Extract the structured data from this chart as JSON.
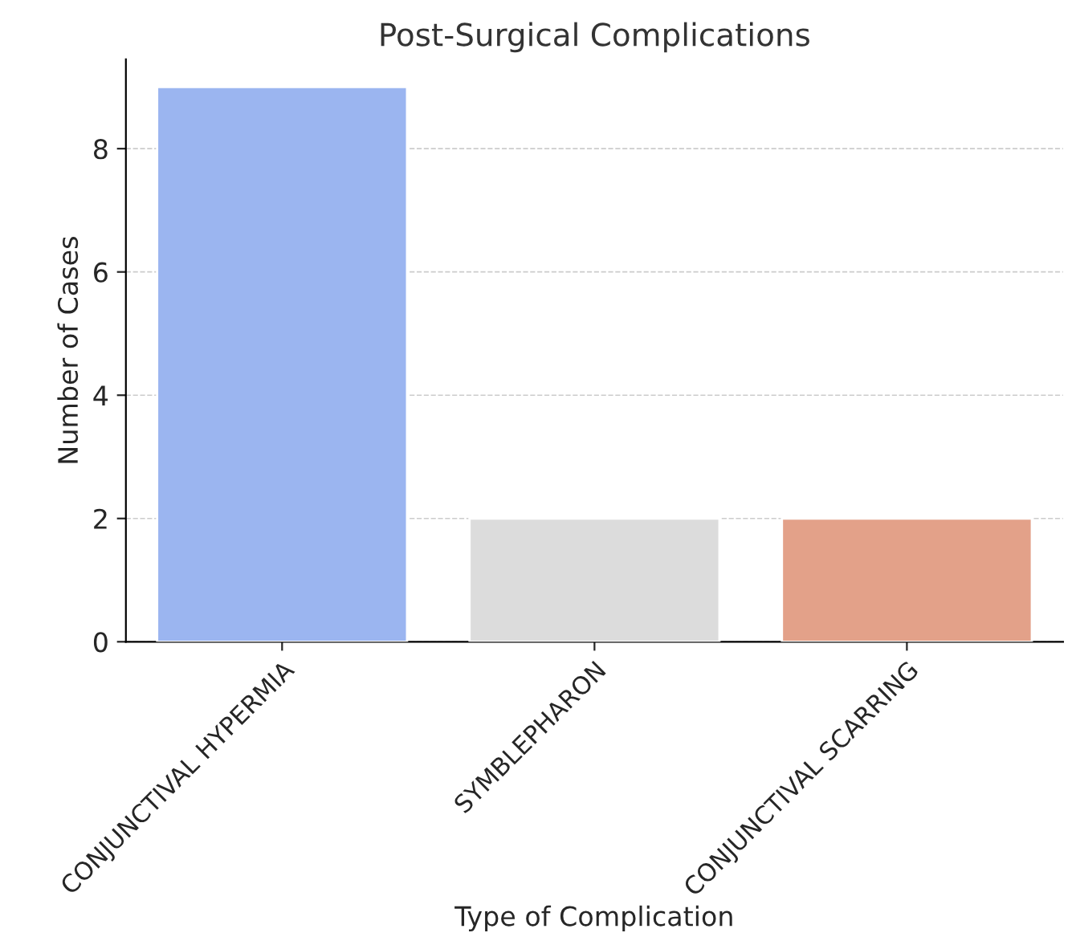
{
  "chart_data": {
    "type": "bar",
    "title": "Post-Surgical Complications",
    "xlabel": "Type of Complication",
    "ylabel": "Number of Cases",
    "categories": [
      "CONJUNCTIVAL HYPERMIA",
      "SYMBLEPHARON",
      "CONJUNCTIVAL SCARRING"
    ],
    "values": [
      9,
      2,
      2
    ],
    "colors": [
      "#9bb5f0",
      "#dcdcdc",
      "#e3a189"
    ],
    "ylim": [
      0,
      9.45
    ],
    "yticks": [
      0,
      2,
      4,
      6,
      8
    ],
    "grid": "y"
  }
}
